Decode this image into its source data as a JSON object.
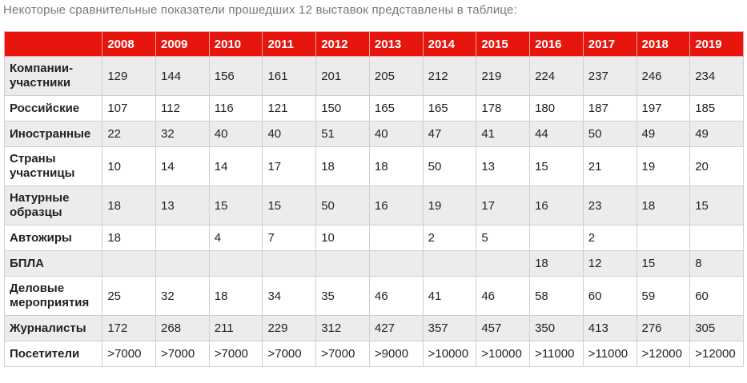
{
  "intro": "Некоторые сравнительные показатели прошедших 12 выставок представлены в таблице:",
  "table": {
    "years": [
      "2008",
      "2009",
      "2010",
      "2011",
      "2012",
      "2013",
      "2014",
      "2015",
      "2016",
      "2017",
      "2018",
      "2019"
    ],
    "rows": [
      {
        "label": "Компании-участники",
        "values": [
          "129",
          "144",
          "156",
          "161",
          "201",
          "205",
          "212",
          "219",
          "224",
          "237",
          "246",
          "234"
        ]
      },
      {
        "label": "Российские",
        "values": [
          "107",
          "112",
          "116",
          "121",
          "150",
          "165",
          "165",
          "178",
          "180",
          "187",
          "197",
          "185"
        ]
      },
      {
        "label": "Иностранные",
        "values": [
          "22",
          "32",
          "40",
          "40",
          "51",
          "40",
          "47",
          "41",
          "44",
          "50",
          "49",
          "49"
        ]
      },
      {
        "label": "Страны участницы",
        "values": [
          "10",
          "14",
          "14",
          "17",
          "18",
          "18",
          "50",
          "13",
          "15",
          "21",
          "19",
          "20"
        ]
      },
      {
        "label": "Натурные образцы",
        "values": [
          "18",
          "13",
          "15",
          "15",
          "50",
          "16",
          "19",
          "17",
          "16",
          "23",
          "18",
          "15"
        ]
      },
      {
        "label": "Автожиры",
        "values": [
          "18",
          "",
          "4",
          "7",
          "10",
          "",
          "2",
          "5",
          "",
          "2",
          "",
          ""
        ]
      },
      {
        "label": "БПЛА",
        "values": [
          "",
          "",
          "",
          "",
          "",
          "",
          "",
          "",
          "18",
          "12",
          "15",
          "8"
        ]
      },
      {
        "label": "Деловые мероприятия",
        "values": [
          "25",
          "32",
          "18",
          "34",
          "35",
          "46",
          "41",
          "46",
          "58",
          "60",
          "59",
          "60"
        ]
      },
      {
        "label": "Журналисты",
        "values": [
          "172",
          "268",
          "211",
          "229",
          "312",
          "427",
          "357",
          "457",
          "350",
          "413",
          "276",
          "305"
        ]
      },
      {
        "label": "Посетители",
        "values": [
          ">7000",
          ">7000",
          ">7000",
          ">7000",
          ">7000",
          ">9000",
          ">10000",
          ">10000",
          ">11000",
          ">11000",
          ">12000",
          ">12000"
        ]
      }
    ]
  },
  "colors": {
    "header_bg": "#e8150f",
    "header_text": "#ffffff",
    "row_alt_bg": "#ececec",
    "border": "#cfcfcf"
  }
}
